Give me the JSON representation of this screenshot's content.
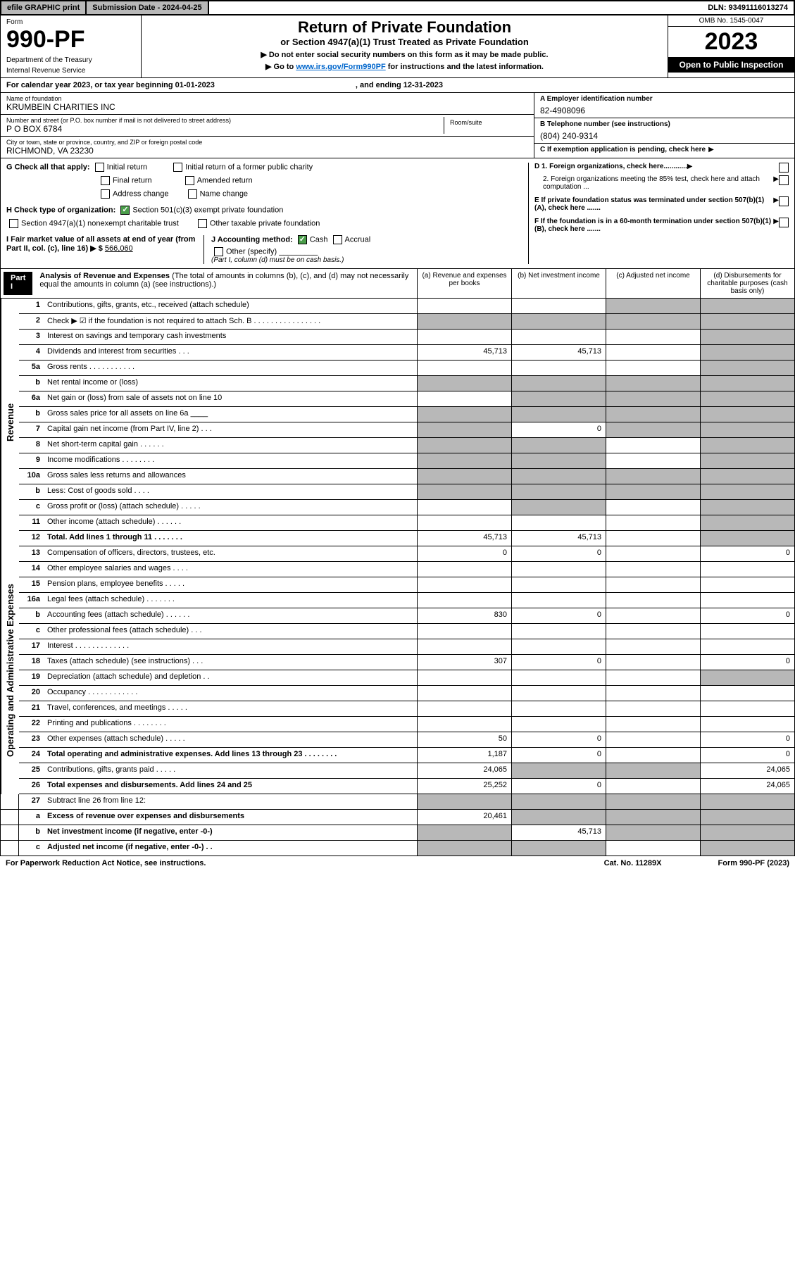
{
  "topbar": {
    "efile": "efile GRAPHIC print",
    "sub_label": "Submission Date - 2024-04-25",
    "dln": "DLN: 93491116013274"
  },
  "header": {
    "form_label": "Form",
    "form_num": "990-PF",
    "dept1": "Department of the Treasury",
    "dept2": "Internal Revenue Service",
    "title": "Return of Private Foundation",
    "subtitle": "or Section 4947(a)(1) Trust Treated as Private Foundation",
    "note1": "▶ Do not enter social security numbers on this form as it may be made public.",
    "note2_pre": "▶ Go to ",
    "note2_link": "www.irs.gov/Form990PF",
    "note2_post": " for instructions and the latest information.",
    "omb": "OMB No. 1545-0047",
    "year": "2023",
    "open": "Open to Public Inspection"
  },
  "cal": {
    "text1": "For calendar year 2023, or tax year beginning 01-01-2023",
    "text2": ", and ending 12-31-2023"
  },
  "info": {
    "name_lbl": "Name of foundation",
    "name": "KRUMBEIN CHARITIES INC",
    "addr_lbl": "Number and street (or P.O. box number if mail is not delivered to street address)",
    "addr": "P O BOX 6784",
    "room_lbl": "Room/suite",
    "city_lbl": "City or town, state or province, country, and ZIP or foreign postal code",
    "city": "RICHMOND, VA  23230",
    "a_lbl": "A Employer identification number",
    "a_val": "82-4908096",
    "b_lbl": "B Telephone number (see instructions)",
    "b_val": "(804) 240-9314",
    "c_lbl": "C If exemption application is pending, check here",
    "d1_lbl": "D 1. Foreign organizations, check here............",
    "d2_lbl": "2. Foreign organizations meeting the 85% test, check here and attach computation ...",
    "e_lbl": "E If private foundation status was terminated under section 507(b)(1)(A), check here .......",
    "f_lbl": "F If the foundation is in a 60-month termination under section 507(b)(1)(B), check here .......",
    "g_lbl": "G Check all that apply:",
    "g_initial": "Initial return",
    "g_initial_former": "Initial return of a former public charity",
    "g_final": "Final return",
    "g_amended": "Amended return",
    "g_address": "Address change",
    "g_name": "Name change",
    "h_lbl": "H Check type of organization:",
    "h_501c3": "Section 501(c)(3) exempt private foundation",
    "h_4947": "Section 4947(a)(1) nonexempt charitable trust",
    "h_other": "Other taxable private foundation",
    "i_lbl": "I Fair market value of all assets at end of year (from Part II, col. (c), line 16) ▶ $",
    "i_val": "566,060",
    "j_lbl": "J Accounting method:",
    "j_cash": "Cash",
    "j_accrual": "Accrual",
    "j_other": "Other (specify)",
    "j_note": "(Part I, column (d) must be on cash basis.)"
  },
  "part1": {
    "label": "Part I",
    "title": "Analysis of Revenue and Expenses",
    "note": "(The total of amounts in columns (b), (c), and (d) may not necessarily equal the amounts in column (a) (see instructions).)",
    "col_a": "(a) Revenue and expenses per books",
    "col_b": "(b) Net investment income",
    "col_c": "(c) Adjusted net income",
    "col_d": "(d) Disbursements for charitable purposes (cash basis only)"
  },
  "side_labels": {
    "revenue": "Revenue",
    "opex": "Operating and Administrative Expenses"
  },
  "rows": [
    {
      "ln": "1",
      "desc": "Contributions, gifts, grants, etc., received (attach schedule)",
      "a": "",
      "b": "",
      "c": "shaded",
      "d": "shaded"
    },
    {
      "ln": "2",
      "desc": "Check ▶ ☑ if the foundation is not required to attach Sch. B  . . . . . . . . . . . . . . . .",
      "a": "shaded",
      "b": "shaded",
      "c": "shaded",
      "d": "shaded"
    },
    {
      "ln": "3",
      "desc": "Interest on savings and temporary cash investments",
      "a": "",
      "b": "",
      "c": "",
      "d": "shaded"
    },
    {
      "ln": "4",
      "desc": "Dividends and interest from securities  .  .  .",
      "a": "45,713",
      "b": "45,713",
      "c": "",
      "d": "shaded"
    },
    {
      "ln": "5a",
      "desc": "Gross rents  .  .  .  .  .  .  .  .  .  .  .",
      "a": "",
      "b": "",
      "c": "",
      "d": "shaded"
    },
    {
      "ln": "b",
      "desc": "Net rental income or (loss)",
      "a": "shaded",
      "b": "shaded",
      "c": "shaded",
      "d": "shaded"
    },
    {
      "ln": "6a",
      "desc": "Net gain or (loss) from sale of assets not on line 10",
      "a": "",
      "b": "shaded",
      "c": "shaded",
      "d": "shaded"
    },
    {
      "ln": "b",
      "desc": "Gross sales price for all assets on line 6a ____",
      "a": "shaded",
      "b": "shaded",
      "c": "shaded",
      "d": "shaded"
    },
    {
      "ln": "7",
      "desc": "Capital gain net income (from Part IV, line 2)  .  .  .",
      "a": "shaded",
      "b": "0",
      "c": "shaded",
      "d": "shaded"
    },
    {
      "ln": "8",
      "desc": "Net short-term capital gain  .  .  .  .  .  .",
      "a": "shaded",
      "b": "shaded",
      "c": "",
      "d": "shaded"
    },
    {
      "ln": "9",
      "desc": "Income modifications  .  .  .  .  .  .  .  .",
      "a": "shaded",
      "b": "shaded",
      "c": "",
      "d": "shaded"
    },
    {
      "ln": "10a",
      "desc": "Gross sales less returns and allowances",
      "a": "shaded",
      "b": "shaded",
      "c": "shaded",
      "d": "shaded"
    },
    {
      "ln": "b",
      "desc": "Less: Cost of goods sold  .  .  .  .",
      "a": "shaded",
      "b": "shaded",
      "c": "shaded",
      "d": "shaded"
    },
    {
      "ln": "c",
      "desc": "Gross profit or (loss) (attach schedule)  .  .  .  .  .",
      "a": "",
      "b": "shaded",
      "c": "",
      "d": "shaded"
    },
    {
      "ln": "11",
      "desc": "Other income (attach schedule)  .  .  .  .  .  .",
      "a": "",
      "b": "",
      "c": "",
      "d": "shaded"
    },
    {
      "ln": "12",
      "desc": "Total. Add lines 1 through 11  .  .  .  .  .  .  .",
      "a": "45,713",
      "b": "45,713",
      "c": "",
      "d": "shaded",
      "bold": true
    }
  ],
  "oprows": [
    {
      "ln": "13",
      "desc": "Compensation of officers, directors, trustees, etc.",
      "a": "0",
      "b": "0",
      "c": "",
      "d": "0"
    },
    {
      "ln": "14",
      "desc": "Other employee salaries and wages  .  .  .  .",
      "a": "",
      "b": "",
      "c": "",
      "d": ""
    },
    {
      "ln": "15",
      "desc": "Pension plans, employee benefits  .  .  .  .  .",
      "a": "",
      "b": "",
      "c": "",
      "d": ""
    },
    {
      "ln": "16a",
      "desc": "Legal fees (attach schedule)  .  .  .  .  .  .  .",
      "a": "",
      "b": "",
      "c": "",
      "d": ""
    },
    {
      "ln": "b",
      "desc": "Accounting fees (attach schedule)  .  .  .  .  .  .",
      "a": "830",
      "b": "0",
      "c": "",
      "d": "0"
    },
    {
      "ln": "c",
      "desc": "Other professional fees (attach schedule)  .  .  .",
      "a": "",
      "b": "",
      "c": "",
      "d": ""
    },
    {
      "ln": "17",
      "desc": "Interest  .  .  .  .  .  .  .  .  .  .  .  .  .",
      "a": "",
      "b": "",
      "c": "",
      "d": ""
    },
    {
      "ln": "18",
      "desc": "Taxes (attach schedule) (see instructions)  .  .  .",
      "a": "307",
      "b": "0",
      "c": "",
      "d": "0"
    },
    {
      "ln": "19",
      "desc": "Depreciation (attach schedule) and depletion  .  .",
      "a": "",
      "b": "",
      "c": "",
      "d": "shaded"
    },
    {
      "ln": "20",
      "desc": "Occupancy  .  .  .  .  .  .  .  .  .  .  .  .",
      "a": "",
      "b": "",
      "c": "",
      "d": ""
    },
    {
      "ln": "21",
      "desc": "Travel, conferences, and meetings  .  .  .  .  .",
      "a": "",
      "b": "",
      "c": "",
      "d": ""
    },
    {
      "ln": "22",
      "desc": "Printing and publications  .  .  .  .  .  .  .  .",
      "a": "",
      "b": "",
      "c": "",
      "d": ""
    },
    {
      "ln": "23",
      "desc": "Other expenses (attach schedule)  .  .  .  .  .",
      "a": "50",
      "b": "0",
      "c": "",
      "d": "0"
    },
    {
      "ln": "24",
      "desc": "Total operating and administrative expenses. Add lines 13 through 23  .  .  .  .  .  .  .  .",
      "a": "1,187",
      "b": "0",
      "c": "",
      "d": "0",
      "bold": true
    },
    {
      "ln": "25",
      "desc": "Contributions, gifts, grants paid  .  .  .  .  .",
      "a": "24,065",
      "b": "shaded",
      "c": "shaded",
      "d": "24,065"
    },
    {
      "ln": "26",
      "desc": "Total expenses and disbursements. Add lines 24 and 25",
      "a": "25,252",
      "b": "0",
      "c": "",
      "d": "24,065",
      "bold": true
    }
  ],
  "bottomrows": [
    {
      "ln": "27",
      "desc": "Subtract line 26 from line 12:",
      "a": "shaded",
      "b": "shaded",
      "c": "shaded",
      "d": "shaded"
    },
    {
      "ln": "a",
      "desc": "Excess of revenue over expenses and disbursements",
      "a": "20,461",
      "b": "shaded",
      "c": "shaded",
      "d": "shaded",
      "bold": true
    },
    {
      "ln": "b",
      "desc": "Net investment income (if negative, enter -0-)",
      "a": "shaded",
      "b": "45,713",
      "c": "shaded",
      "d": "shaded",
      "bold": true
    },
    {
      "ln": "c",
      "desc": "Adjusted net income (if negative, enter -0-)  .  .",
      "a": "shaded",
      "b": "shaded",
      "c": "",
      "d": "shaded",
      "bold": true
    }
  ],
  "footer": {
    "left": "For Paperwork Reduction Act Notice, see instructions.",
    "mid": "Cat. No. 11289X",
    "right": "Form 990-PF (2023)"
  }
}
